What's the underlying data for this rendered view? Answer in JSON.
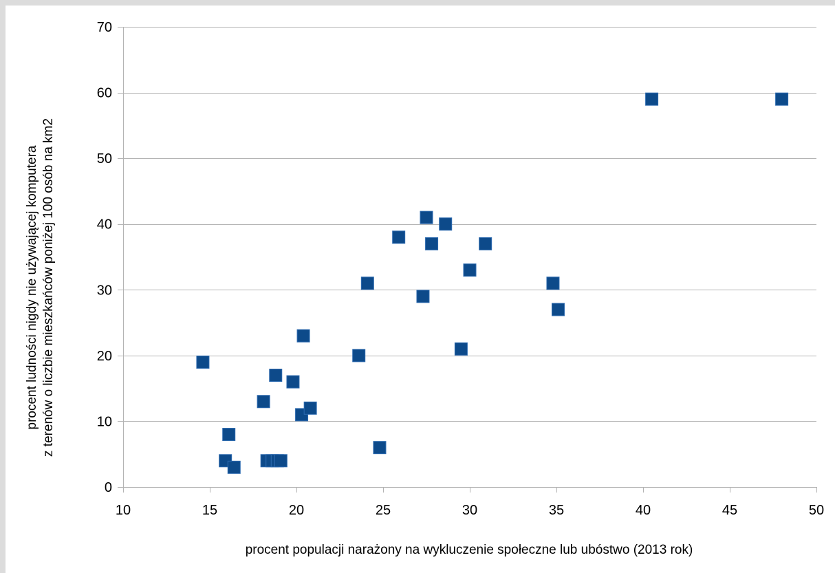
{
  "chart_data": {
    "type": "scatter",
    "title": "",
    "xlabel": "procent populacji narażony na wykluczenie społeczne lub ubóstwo (2013 rok)",
    "ylabel_lines": [
      "procent ludności nigdy nie używającej komputera",
      "z terenów o liczbie mieszkańców poniżej 100 osób na km2"
    ],
    "xlim": [
      10,
      50
    ],
    "ylim": [
      0,
      70
    ],
    "x_ticks": [
      10,
      15,
      20,
      25,
      30,
      35,
      40,
      45,
      50
    ],
    "y_ticks": [
      0,
      10,
      20,
      30,
      40,
      50,
      60,
      70
    ],
    "grid": "horizontal",
    "legend": "none",
    "marker": "square",
    "color": "#0d4a8a",
    "points": [
      {
        "x": 14.6,
        "y": 19
      },
      {
        "x": 15.9,
        "y": 4
      },
      {
        "x": 16.1,
        "y": 8
      },
      {
        "x": 16.4,
        "y": 3
      },
      {
        "x": 18.1,
        "y": 13
      },
      {
        "x": 18.3,
        "y": 4
      },
      {
        "x": 18.6,
        "y": 4
      },
      {
        "x": 18.9,
        "y": 4
      },
      {
        "x": 19.1,
        "y": 4
      },
      {
        "x": 18.8,
        "y": 17
      },
      {
        "x": 19.8,
        "y": 16
      },
      {
        "x": 20.3,
        "y": 11
      },
      {
        "x": 20.4,
        "y": 23
      },
      {
        "x": 20.8,
        "y": 12
      },
      {
        "x": 23.6,
        "y": 20
      },
      {
        "x": 24.1,
        "y": 31
      },
      {
        "x": 24.8,
        "y": 6
      },
      {
        "x": 25.9,
        "y": 38
      },
      {
        "x": 27.3,
        "y": 29
      },
      {
        "x": 27.5,
        "y": 41
      },
      {
        "x": 27.8,
        "y": 37
      },
      {
        "x": 28.6,
        "y": 40
      },
      {
        "x": 29.5,
        "y": 21
      },
      {
        "x": 30.0,
        "y": 33
      },
      {
        "x": 30.9,
        "y": 37
      },
      {
        "x": 34.8,
        "y": 31
      },
      {
        "x": 35.1,
        "y": 27
      },
      {
        "x": 40.5,
        "y": 59
      },
      {
        "x": 48.0,
        "y": 59
      }
    ]
  }
}
